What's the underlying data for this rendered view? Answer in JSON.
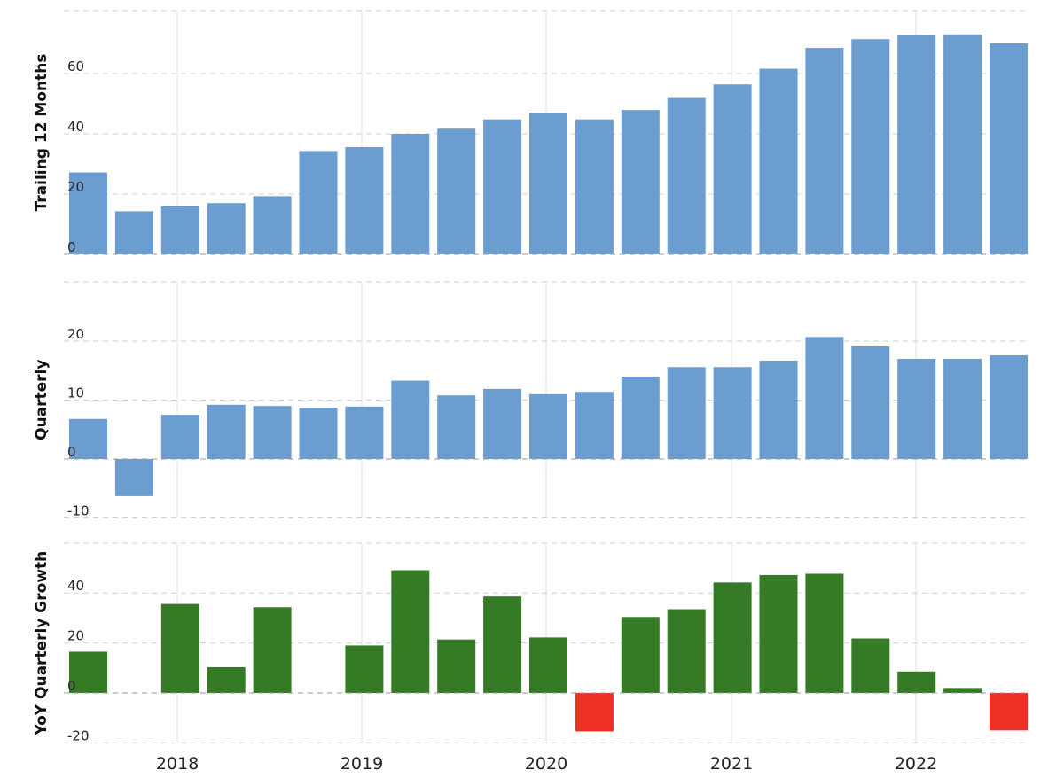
{
  "chart_data": [
    {
      "type": "bar",
      "ylabel": "Trailing 12 Months",
      "ylim": [
        0,
        80
      ],
      "yticks": [
        0,
        20,
        40,
        60
      ],
      "colors": {
        "bar": "#6b9dd1"
      },
      "values": [
        27.2,
        14.3,
        16.0,
        17.0,
        19.3,
        34.3,
        35.6,
        40.0,
        41.7,
        44.8,
        47.0,
        44.8,
        47.9,
        51.9,
        56.4,
        61.6,
        68.5,
        71.4,
        72.7,
        73.0,
        70.0
      ]
    },
    {
      "type": "bar",
      "ylabel": "Quarterly",
      "ylim": [
        -10,
        20
      ],
      "yticks": [
        -10,
        0,
        10,
        20
      ],
      "colors": {
        "bar": "#6b9dd1"
      },
      "values": [
        6.8,
        -6.3,
        7.5,
        9.2,
        9.0,
        8.7,
        8.9,
        13.3,
        10.8,
        11.9,
        11.0,
        11.4,
        14.0,
        15.6,
        15.6,
        16.7,
        20.7,
        19.1,
        17.0,
        17.0,
        17.6
      ]
    },
    {
      "type": "bar",
      "ylabel": "YoY Quarterly Growth",
      "ylim": [
        -20,
        60
      ],
      "yticks": [
        -20,
        0,
        20,
        40
      ],
      "colors": {
        "positive": "#357a24",
        "negative": "#ee3124"
      },
      "values": [
        16.5,
        null,
        35.6,
        10.3,
        34.3,
        null,
        19.0,
        49.1,
        21.4,
        38.6,
        22.2,
        -15.4,
        30.4,
        33.5,
        44.2,
        47.2,
        47.7,
        21.8,
        8.6,
        2.0,
        -15.0
      ]
    }
  ],
  "x_axis": {
    "quarters_start": "2017 Q3",
    "ticks": [
      "2018",
      "2019",
      "2020",
      "2021",
      "2022"
    ]
  }
}
